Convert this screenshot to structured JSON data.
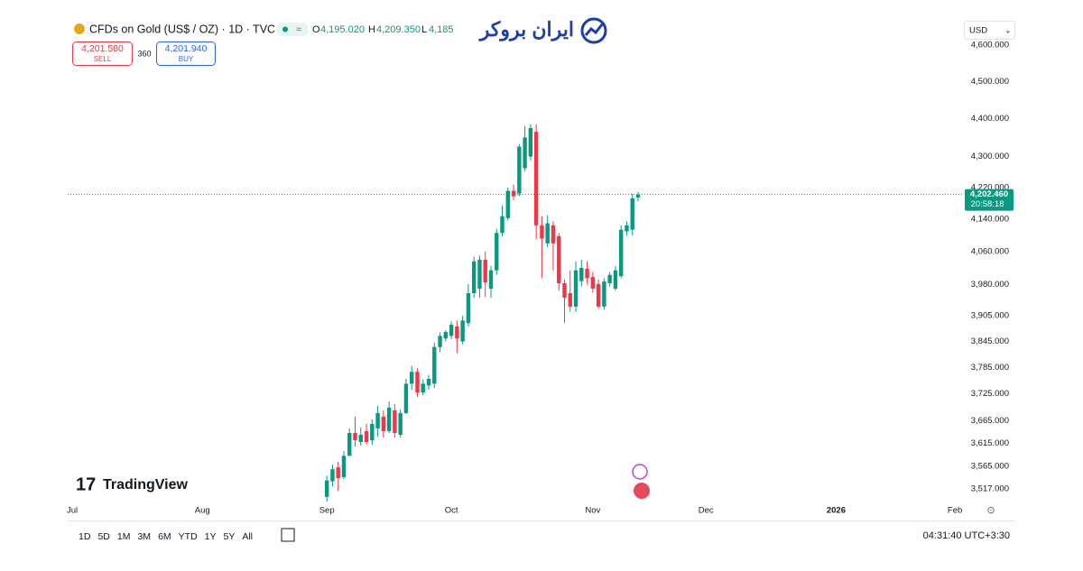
{
  "header": {
    "symbol": "CFDs on Gold (US$ / OZ) · 1D · TVC",
    "open_label": "O",
    "open": "4,195.020",
    "high_label": "H",
    "high": "4,209.350",
    "low_label": "L",
    "low": "4,185",
    "sell_price": "4,201.580",
    "sell": "SELL",
    "spread": "360",
    "buy_price": "4,201.940",
    "buy": "BUY",
    "brand": "ایران بروکر",
    "currency": "USD",
    "watermark": "TradingView"
  },
  "chart_data": {
    "type": "candlestick",
    "up_color": "#089981",
    "down_color": "#f23645",
    "log_scale": true,
    "ylim": [
      3492,
      4671
    ],
    "yticks": [
      {
        "value": 4600,
        "label": "4,600.000"
      },
      {
        "value": 4500,
        "label": "4,500.000"
      },
      {
        "value": 4400,
        "label": "4,400.000"
      },
      {
        "value": 4300,
        "label": "4,300.000"
      },
      {
        "value": 4220,
        "label": "4,220.000"
      },
      {
        "value": 4140,
        "label": "4,140.000"
      },
      {
        "value": 4060,
        "label": "4,060.000"
      },
      {
        "value": 3980,
        "label": "3,980.000"
      },
      {
        "value": 3905,
        "label": "3,905.000"
      },
      {
        "value": 3845,
        "label": "3,845.000"
      },
      {
        "value": 3785,
        "label": "3,785.000"
      },
      {
        "value": 3725,
        "label": "3,725.000"
      },
      {
        "value": 3665,
        "label": "3,665.000"
      },
      {
        "value": 3615,
        "label": "3,615.000"
      },
      {
        "value": 3565,
        "label": "3,565.000"
      },
      {
        "value": 3517,
        "label": "3,517.000"
      }
    ],
    "xlim": [
      -45.8,
      112.1
    ],
    "xticks": [
      {
        "value": -45,
        "label": "Jul"
      },
      {
        "value": -22,
        "label": "Aug"
      },
      {
        "value": 0,
        "label": "Sep"
      },
      {
        "value": 22,
        "label": "Oct"
      },
      {
        "value": 47,
        "label": "Nov"
      },
      {
        "value": 67,
        "label": "Dec"
      },
      {
        "value": 90,
        "label": "2026"
      },
      {
        "value": 111,
        "label": "Feb"
      }
    ],
    "last_price": {
      "value": 4202.46,
      "label": "4,202.460"
    },
    "countdown": "20:58:18",
    "candles": [
      {
        "open": 3500,
        "high": 3545,
        "low": 3490,
        "close": 3535
      },
      {
        "open": 3533,
        "high": 3569,
        "low": 3522,
        "close": 3559
      },
      {
        "open": 3563,
        "high": 3575,
        "low": 3512,
        "close": 3540
      },
      {
        "open": 3542,
        "high": 3598,
        "low": 3538,
        "close": 3588
      },
      {
        "open": 3588,
        "high": 3648,
        "low": 3588,
        "close": 3638
      },
      {
        "open": 3638,
        "high": 3674,
        "low": 3608,
        "close": 3622
      },
      {
        "open": 3618,
        "high": 3650,
        "low": 3610,
        "close": 3634
      },
      {
        "open": 3642,
        "high": 3658,
        "low": 3612,
        "close": 3618
      },
      {
        "open": 3622,
        "high": 3668,
        "low": 3612,
        "close": 3658
      },
      {
        "open": 3648,
        "high": 3698,
        "low": 3630,
        "close": 3682
      },
      {
        "open": 3674,
        "high": 3688,
        "low": 3628,
        "close": 3642
      },
      {
        "open": 3642,
        "high": 3708,
        "low": 3638,
        "close": 3694
      },
      {
        "open": 3688,
        "high": 3702,
        "low": 3628,
        "close": 3638
      },
      {
        "open": 3634,
        "high": 3690,
        "low": 3628,
        "close": 3682
      },
      {
        "open": 3682,
        "high": 3759,
        "low": 3680,
        "close": 3748
      },
      {
        "open": 3748,
        "high": 3789,
        "low": 3734,
        "close": 3775
      },
      {
        "open": 3775,
        "high": 3783,
        "low": 3718,
        "close": 3728
      },
      {
        "open": 3728,
        "high": 3758,
        "low": 3722,
        "close": 3748
      },
      {
        "open": 3744,
        "high": 3768,
        "low": 3735,
        "close": 3759
      },
      {
        "open": 3748,
        "high": 3842,
        "low": 3738,
        "close": 3832
      },
      {
        "open": 3832,
        "high": 3866,
        "low": 3820,
        "close": 3858
      },
      {
        "open": 3852,
        "high": 3872,
        "low": 3845,
        "close": 3867
      },
      {
        "open": 3858,
        "high": 3892,
        "low": 3850,
        "close": 3884
      },
      {
        "open": 3880,
        "high": 3894,
        "low": 3818,
        "close": 3852
      },
      {
        "open": 3845,
        "high": 3905,
        "low": 3838,
        "close": 3894
      },
      {
        "open": 3888,
        "high": 3981,
        "low": 3880,
        "close": 3959
      },
      {
        "open": 3959,
        "high": 4047,
        "low": 3948,
        "close": 4036
      },
      {
        "open": 3970,
        "high": 4050,
        "low": 3948,
        "close": 4040
      },
      {
        "open": 4040,
        "high": 4060,
        "low": 3950,
        "close": 3985
      },
      {
        "open": 3970,
        "high": 4025,
        "low": 3948,
        "close": 4014
      },
      {
        "open": 4014,
        "high": 4116,
        "low": 4003,
        "close": 4106
      },
      {
        "open": 4106,
        "high": 4175,
        "low": 4098,
        "close": 4148
      },
      {
        "open": 4143,
        "high": 4220,
        "low": 4137,
        "close": 4212
      },
      {
        "open": 4212,
        "high": 4228,
        "low": 4188,
        "close": 4198
      },
      {
        "open": 4205,
        "high": 4333,
        "low": 4198,
        "close": 4326
      },
      {
        "open": 4270,
        "high": 4381,
        "low": 4262,
        "close": 4350
      },
      {
        "open": 4300,
        "high": 4385,
        "low": 4290,
        "close": 4375
      },
      {
        "open": 4365,
        "high": 4385,
        "low": 4090,
        "close": 4125
      },
      {
        "open": 4125,
        "high": 4148,
        "low": 3995,
        "close": 4092
      },
      {
        "open": 4080,
        "high": 4150,
        "low": 4070,
        "close": 4130
      },
      {
        "open": 4125,
        "high": 4135,
        "low": 4014,
        "close": 4080
      },
      {
        "open": 4098,
        "high": 4106,
        "low": 3965,
        "close": 3983
      },
      {
        "open": 3983,
        "high": 3992,
        "low": 3888,
        "close": 3948
      },
      {
        "open": 3959,
        "high": 4014,
        "low": 3915,
        "close": 3927
      },
      {
        "open": 3927,
        "high": 4036,
        "low": 3915,
        "close": 4014
      },
      {
        "open": 3988,
        "high": 4040,
        "low": 3975,
        "close": 4020
      },
      {
        "open": 4018,
        "high": 4036,
        "low": 3980,
        "close": 3995
      },
      {
        "open": 3998,
        "high": 4010,
        "low": 3960,
        "close": 3970
      },
      {
        "open": 3981,
        "high": 3992,
        "low": 3922,
        "close": 3927
      },
      {
        "open": 3927,
        "high": 3995,
        "low": 3920,
        "close": 3987
      },
      {
        "open": 3983,
        "high": 4010,
        "low": 3975,
        "close": 4003
      },
      {
        "open": 3970,
        "high": 4025,
        "low": 3965,
        "close": 4014
      },
      {
        "open": 4000,
        "high": 4125,
        "low": 3995,
        "close": 4114
      },
      {
        "open": 4110,
        "high": 4135,
        "low": 4100,
        "close": 4125
      },
      {
        "open": 4114,
        "high": 4205,
        "low": 4100,
        "close": 4193
      },
      {
        "open": 4195.02,
        "high": 4209.35,
        "low": 4185,
        "close": 4202.46
      }
    ]
  },
  "toolbar": {
    "ranges": [
      "1D",
      "5D",
      "1M",
      "3M",
      "6M",
      "YTD",
      "1Y",
      "5Y",
      "All"
    ],
    "clock": "04:31:40 UTC+3:30"
  }
}
